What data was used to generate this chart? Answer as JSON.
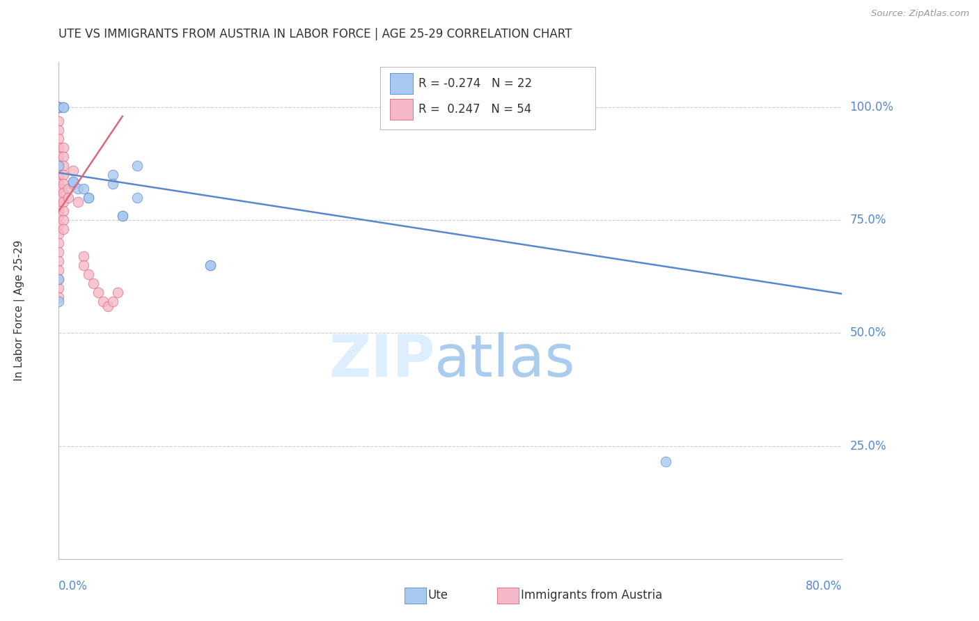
{
  "title": "UTE VS IMMIGRANTS FROM AUSTRIA IN LABOR FORCE | AGE 25-29 CORRELATION CHART",
  "source": "Source: ZipAtlas.com",
  "ylabel": "In Labor Force | Age 25-29",
  "xlim": [
    0.0,
    0.8
  ],
  "ylim": [
    0.0,
    1.1
  ],
  "ytick_labels": [
    "100.0%",
    "75.0%",
    "50.0%",
    "25.0%"
  ],
  "ytick_values": [
    1.0,
    0.75,
    0.5,
    0.25
  ],
  "legend_r_blue": "-0.274",
  "legend_n_blue": "22",
  "legend_r_pink": "0.247",
  "legend_n_pink": "54",
  "blue_color": "#a8c8f0",
  "pink_color": "#f5b8c8",
  "trendline_blue_color": "#5588cc",
  "trendline_pink_color": "#dd6677",
  "blue_scatter": [
    [
      0.0,
      0.57
    ],
    [
      0.0,
      0.62
    ],
    [
      0.0,
      1.0
    ],
    [
      0.0,
      1.0
    ],
    [
      0.005,
      1.0
    ],
    [
      0.005,
      1.0
    ],
    [
      0.0,
      0.87
    ],
    [
      0.015,
      0.835
    ],
    [
      0.015,
      0.835
    ],
    [
      0.02,
      0.82
    ],
    [
      0.025,
      0.82
    ],
    [
      0.03,
      0.8
    ],
    [
      0.03,
      0.8
    ],
    [
      0.055,
      0.85
    ],
    [
      0.055,
      0.83
    ],
    [
      0.065,
      0.76
    ],
    [
      0.065,
      0.76
    ],
    [
      0.08,
      0.87
    ],
    [
      0.08,
      0.8
    ],
    [
      0.155,
      0.65
    ],
    [
      0.155,
      0.65
    ],
    [
      0.62,
      0.215
    ]
  ],
  "pink_scatter": [
    [
      0.0,
      1.0
    ],
    [
      0.0,
      1.0
    ],
    [
      0.0,
      1.0
    ],
    [
      0.0,
      1.0
    ],
    [
      0.0,
      1.0
    ],
    [
      0.0,
      1.0
    ],
    [
      0.0,
      1.0
    ],
    [
      0.0,
      1.0
    ],
    [
      0.0,
      0.97
    ],
    [
      0.0,
      0.95
    ],
    [
      0.0,
      0.93
    ],
    [
      0.0,
      0.91
    ],
    [
      0.0,
      0.89
    ],
    [
      0.0,
      0.87
    ],
    [
      0.0,
      0.85
    ],
    [
      0.0,
      0.83
    ],
    [
      0.0,
      0.82
    ],
    [
      0.0,
      0.8
    ],
    [
      0.0,
      0.78
    ],
    [
      0.0,
      0.77
    ],
    [
      0.0,
      0.76
    ],
    [
      0.0,
      0.74
    ],
    [
      0.0,
      0.72
    ],
    [
      0.0,
      0.7
    ],
    [
      0.0,
      0.68
    ],
    [
      0.0,
      0.66
    ],
    [
      0.0,
      0.64
    ],
    [
      0.0,
      0.62
    ],
    [
      0.0,
      0.6
    ],
    [
      0.0,
      0.58
    ],
    [
      0.005,
      0.91
    ],
    [
      0.005,
      0.89
    ],
    [
      0.005,
      0.87
    ],
    [
      0.005,
      0.85
    ],
    [
      0.005,
      0.83
    ],
    [
      0.005,
      0.81
    ],
    [
      0.005,
      0.79
    ],
    [
      0.005,
      0.77
    ],
    [
      0.005,
      0.75
    ],
    [
      0.005,
      0.73
    ],
    [
      0.01,
      0.82
    ],
    [
      0.01,
      0.8
    ],
    [
      0.015,
      0.86
    ],
    [
      0.015,
      0.83
    ],
    [
      0.02,
      0.79
    ],
    [
      0.025,
      0.67
    ],
    [
      0.025,
      0.65
    ],
    [
      0.03,
      0.63
    ],
    [
      0.035,
      0.61
    ],
    [
      0.04,
      0.59
    ],
    [
      0.045,
      0.57
    ],
    [
      0.05,
      0.56
    ],
    [
      0.055,
      0.57
    ],
    [
      0.06,
      0.59
    ]
  ],
  "blue_trendline_x": [
    0.0,
    0.8
  ],
  "blue_trendline_y": [
    0.855,
    0.587
  ],
  "pink_trendline_x": [
    0.0,
    0.065
  ],
  "pink_trendline_y": [
    0.77,
    0.98
  ]
}
